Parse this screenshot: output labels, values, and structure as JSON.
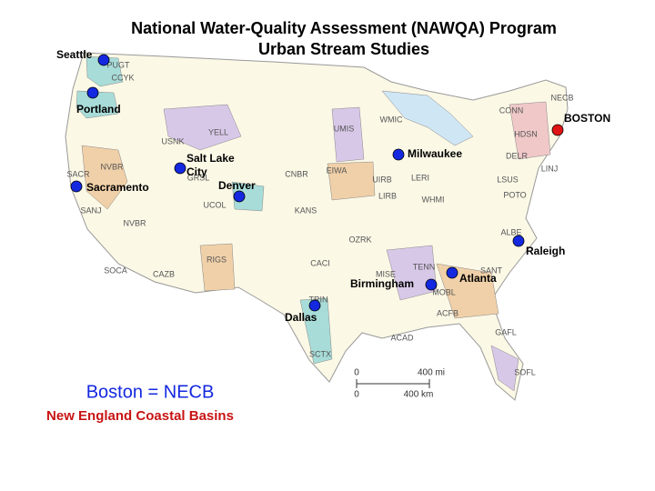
{
  "title": [
    "National Water-Quality Assessment (NAWQA) Program",
    "Urban Stream Studies"
  ],
  "cities": [
    {
      "label": [
        "Seattle"
      ],
      "color": "#1428e0"
    },
    {
      "label": [
        "Portland"
      ],
      "color": "#1428e0"
    },
    {
      "label": [
        "Sacramento"
      ],
      "color": "#1428e0"
    },
    {
      "label": [
        "Salt Lake",
        "City"
      ],
      "color": "#1428e0"
    },
    {
      "label": [
        "Denver"
      ],
      "color": "#1428e0"
    },
    {
      "label": [
        "Milwaukee"
      ],
      "color": "#1428e0"
    },
    {
      "label": [
        "BOSTON"
      ],
      "color": "#e01414"
    },
    {
      "label": [
        "Raleigh"
      ],
      "color": "#1428e0"
    },
    {
      "label": [
        "Atlanta"
      ],
      "color": "#1428e0"
    },
    {
      "label": [
        "Birmingham"
      ],
      "color": "#1428e0"
    },
    {
      "label": [
        "Dallas"
      ],
      "color": "#1428e0"
    }
  ],
  "basins": [
    "PUGT",
    "CCYK",
    "YELL",
    "USNK",
    "NVBR",
    "SACR",
    "GRSL",
    "SANJ",
    "NVBR",
    "UCOL",
    "UMIS",
    "WMIC",
    "EIWA",
    "CNBR",
    "UIRB",
    "LERI",
    "LIRB",
    "WHMI",
    "KANS",
    "CONN",
    "HDSN",
    "NECB",
    "DELR",
    "LINJ",
    "LSUS",
    "POTO",
    "ALBE",
    "OZRK",
    "CACI",
    "RIGS",
    "SOCA",
    "CAZB",
    "TENN",
    "SANT",
    "MISE",
    "MOBL",
    "ACFB",
    "GAFL",
    "TRIN",
    "ACAD",
    "SCTX",
    "SOFL"
  ],
  "scale": {
    "miles": [
      "0",
      "400 mi"
    ],
    "km": [
      "0",
      "400 km"
    ]
  },
  "note": {
    "line1": "Boston = NECB",
    "line2": "New England Coastal Basins"
  }
}
